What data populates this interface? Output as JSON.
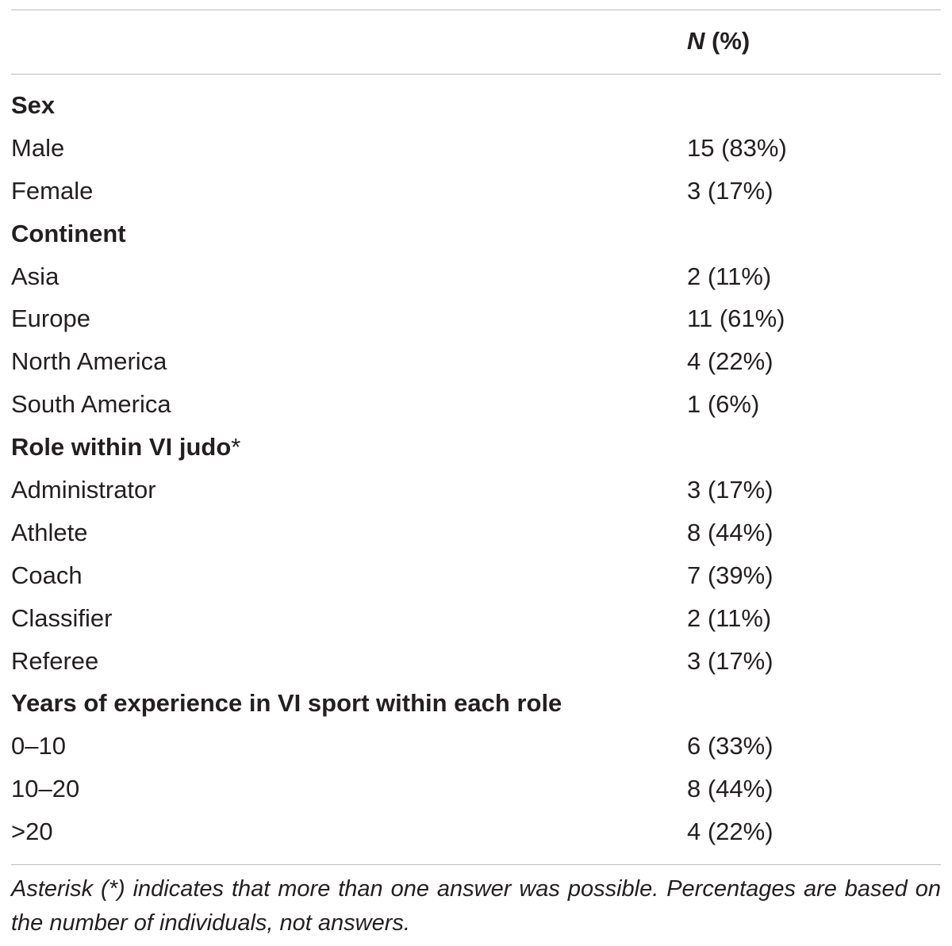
{
  "table": {
    "header": {
      "col_label": "",
      "col_value_italic": "N",
      "col_value_rest": " (%)"
    },
    "groups": [
      {
        "title": "Sex",
        "mark": "",
        "rows": [
          {
            "label": "Male",
            "value": "15 (83%)"
          },
          {
            "label": "Female",
            "value": "3 (17%)"
          }
        ]
      },
      {
        "title": "Continent",
        "mark": "",
        "rows": [
          {
            "label": "Asia",
            "value": "2 (11%)"
          },
          {
            "label": "Europe",
            "value": "11 (61%)"
          },
          {
            "label": "North America",
            "value": "4 (22%)"
          },
          {
            "label": "South America",
            "value": "1 (6%)"
          }
        ]
      },
      {
        "title": "Role within VI judo",
        "mark": "*",
        "rows": [
          {
            "label": "Administrator",
            "value": "3 (17%)"
          },
          {
            "label": "Athlete",
            "value": "8 (44%)"
          },
          {
            "label": "Coach",
            "value": "7 (39%)"
          },
          {
            "label": "Classifier",
            "value": "2 (11%)"
          },
          {
            "label": "Referee",
            "value": "3 (17%)"
          }
        ]
      },
      {
        "title": "Years of experience in VI sport within each role",
        "mark": "",
        "rows": [
          {
            "label": "0–10",
            "value": "6 (33%)"
          },
          {
            "label": "10–20",
            "value": "8 (44%)"
          },
          {
            "label": ">20",
            "value": "4 (22%)"
          }
        ]
      }
    ]
  },
  "footnote": "Asterisk (*) indicates that more than one answer was possible. Percentages are based on the number of individuals, not answers."
}
